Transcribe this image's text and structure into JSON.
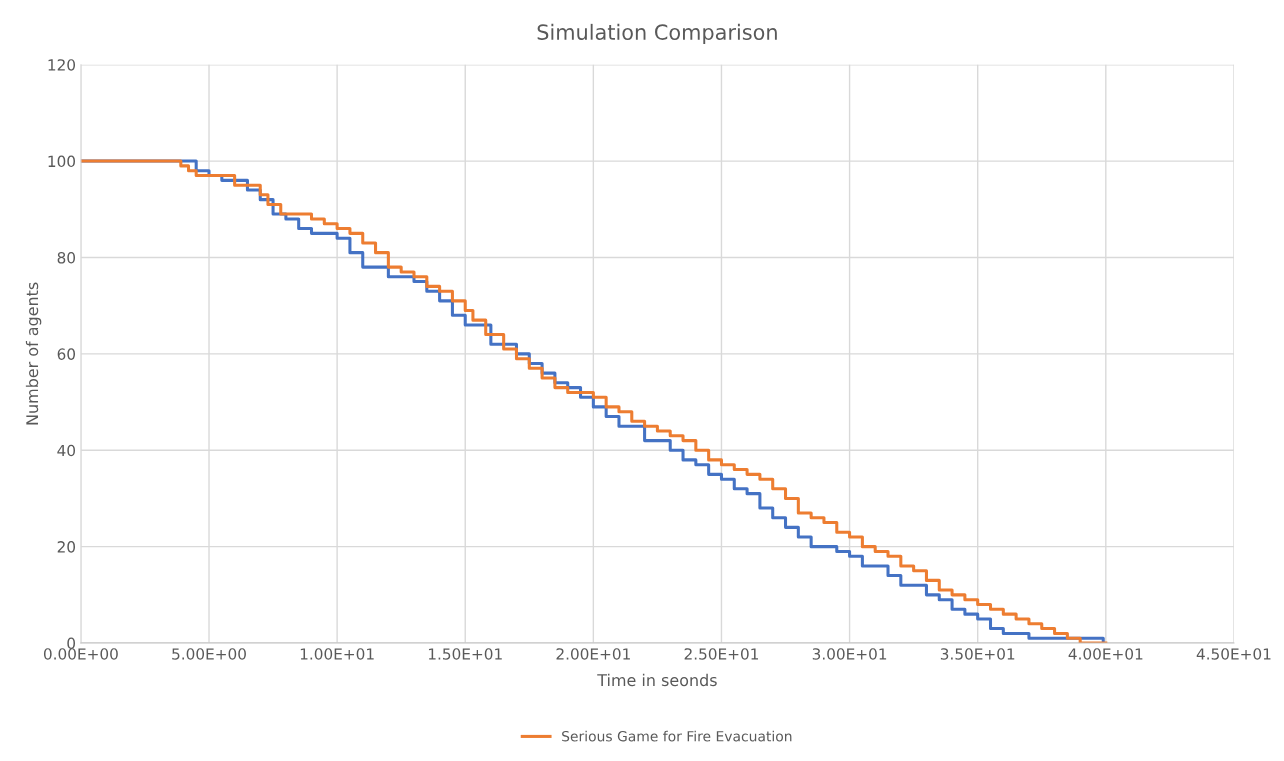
{
  "chart_data": {
    "type": "step",
    "title": "Simulation Comparison",
    "xlabel": "Time in seonds",
    "ylabel": "Number of agents",
    "xlim": [
      0,
      45
    ],
    "ylim": [
      0,
      120
    ],
    "xticks": [
      {
        "value": 0,
        "label": "0.00E+00"
      },
      {
        "value": 5,
        "label": "5.00E+00"
      },
      {
        "value": 10,
        "label": "1.00E+01"
      },
      {
        "value": 15,
        "label": "1.50E+01"
      },
      {
        "value": 20,
        "label": "2.00E+01"
      },
      {
        "value": 25,
        "label": "2.50E+01"
      },
      {
        "value": 30,
        "label": "3.00E+01"
      },
      {
        "value": 35,
        "label": "3.50E+01"
      },
      {
        "value": 40,
        "label": "4.00E+01"
      },
      {
        "value": 45,
        "label": "4.50E+01"
      }
    ],
    "yticks": [
      0,
      20,
      40,
      60,
      80,
      100,
      120
    ],
    "grid": true,
    "legend": "bottom",
    "marker": "none",
    "line_style": "solid",
    "series": [
      {
        "color": "#4472c4",
        "x": [
          0,
          4.0,
          4.5,
          5,
          5.5,
          6.5,
          7,
          7.5,
          8,
          8.5,
          9,
          10,
          10.5,
          11,
          12,
          13,
          13.5,
          14,
          14.5,
          15,
          16,
          17,
          17.5,
          18,
          18.5,
          19,
          19.5,
          20,
          20.5,
          21,
          22,
          23,
          23.5,
          24,
          24.5,
          25,
          25.5,
          26,
          26.5,
          27,
          27.5,
          28,
          28.5,
          29.5,
          30,
          30.5,
          31.5,
          32,
          33,
          33.5,
          34,
          34.5,
          35,
          35.5,
          36,
          37,
          38.5,
          39.9
        ],
        "values": [
          100,
          100,
          98,
          97,
          96,
          94,
          92,
          89,
          88,
          86,
          85,
          84,
          81,
          78,
          76,
          75,
          73,
          71,
          68,
          66,
          62,
          60,
          58,
          56,
          54,
          53,
          51,
          49,
          47,
          45,
          42,
          40,
          38,
          37,
          35,
          34,
          32,
          31,
          28,
          26,
          24,
          22,
          20,
          19,
          18,
          16,
          14,
          12,
          10,
          9,
          7,
          6,
          5,
          3,
          2,
          1,
          1,
          0
        ]
      },
      {
        "name": "Serious Game for Fire Evacuation",
        "color": "#ed7d31",
        "x": [
          0,
          3.7,
          3.9,
          4.2,
          4.5,
          5.5,
          6,
          6.5,
          7,
          7.3,
          7.8,
          8.5,
          9,
          9.5,
          10,
          10.5,
          11,
          11.5,
          12,
          12.5,
          13,
          13.5,
          14,
          14.5,
          15,
          15.3,
          15.8,
          16.5,
          17,
          17.5,
          18,
          18.5,
          19,
          20,
          20.5,
          21,
          21.5,
          22,
          22.5,
          23,
          23.5,
          24,
          24.5,
          25,
          25.5,
          26,
          26.5,
          27,
          27.5,
          28,
          28.5,
          29,
          29.5,
          30,
          30.5,
          31,
          31.5,
          32,
          32.5,
          33,
          33.5,
          34,
          34.5,
          35,
          35.5,
          36,
          36.5,
          37,
          37.5,
          38,
          38.5,
          39,
          40
        ],
        "values": [
          100,
          100,
          99,
          98,
          97,
          97,
          95,
          95,
          93,
          91,
          89,
          89,
          88,
          87,
          86,
          85,
          83,
          81,
          78,
          77,
          76,
          74,
          73,
          71,
          69,
          67,
          64,
          61,
          59,
          57,
          55,
          53,
          52,
          51,
          49,
          48,
          46,
          45,
          44,
          43,
          42,
          40,
          38,
          37,
          36,
          35,
          34,
          32,
          30,
          27,
          26,
          25,
          23,
          22,
          20,
          19,
          18,
          16,
          15,
          13,
          11,
          10,
          9,
          8,
          7,
          6,
          5,
          4,
          3,
          2,
          1,
          0,
          0
        ]
      }
    ]
  }
}
